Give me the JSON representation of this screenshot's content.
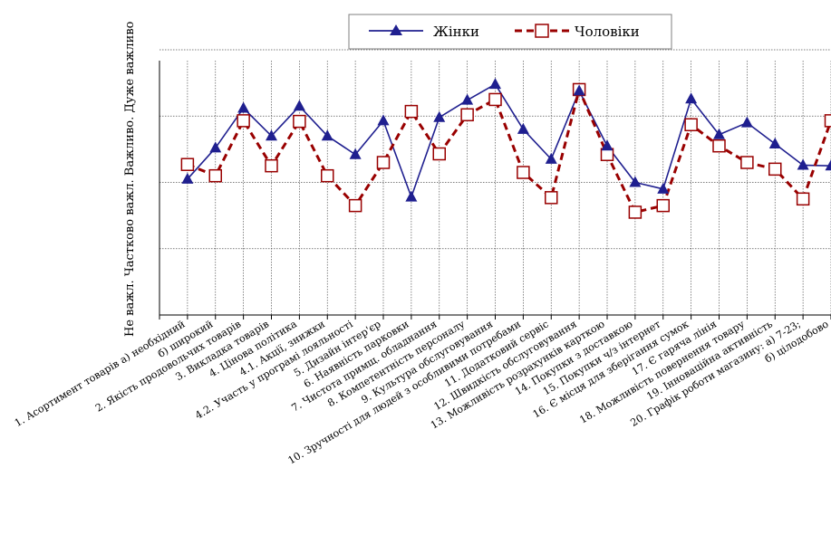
{
  "chart_data": {
    "type": "line",
    "ylabel": "Не важл. Частково важл. Важливо. Дуже важливо",
    "categories": [
      "1. Асортимент товарів а) необхідний",
      "б) широкий",
      "2. Якість продовольчих товарів",
      "3. Викладка товарів",
      "4. Цінова політика",
      "4.1. Акції, знижки",
      "4.2. Участь у програмі лояльності",
      "5. Дизайн інтер'єр",
      "6. Наявність парковки",
      "7. Чистота примщ. обладнання",
      "8. Компетентність персоналу",
      "9. Культура обслуговування",
      "10. Зручності для людей з особливими потребами",
      "11. Додатковий сервіс",
      "12. Швидкість обслуговування",
      "13. Можливість розрахунків карткою",
      "14. Покупки з доставкою",
      "15. Покупки ч/з інтернет",
      "16. Є місця для зберігання сумок",
      "17. Є гаряча лінія",
      "18. Можливість повернення товару",
      "19. Інноваційна активність",
      "20. Графік роботи магазину: а) 7-23;",
      "б) цілодобово"
    ],
    "ylim": [
      0,
      4
    ],
    "grid": true,
    "legend_position": "top-center",
    "series": [
      {
        "name": "Жінки",
        "color": "#1f1f8f",
        "marker": "triangle",
        "line_style": "solid",
        "values": [
          2.05,
          2.52,
          3.12,
          2.7,
          3.15,
          2.7,
          2.42,
          2.93,
          1.78,
          2.98,
          3.24,
          3.48,
          2.8,
          2.35,
          3.38,
          2.55,
          2.0,
          1.9,
          3.26,
          2.72,
          2.9,
          2.58,
          2.26,
          2.25
        ]
      },
      {
        "name": "Чоловіки",
        "color": "#990000",
        "marker": "square",
        "line_style": "dashed",
        "values": [
          2.27,
          2.1,
          2.93,
          2.25,
          2.92,
          2.1,
          1.65,
          2.3,
          3.07,
          2.43,
          3.02,
          3.25,
          2.15,
          1.77,
          3.4,
          2.42,
          1.55,
          1.65,
          2.87,
          2.55,
          2.3,
          2.2,
          1.75,
          2.93
        ]
      }
    ]
  }
}
